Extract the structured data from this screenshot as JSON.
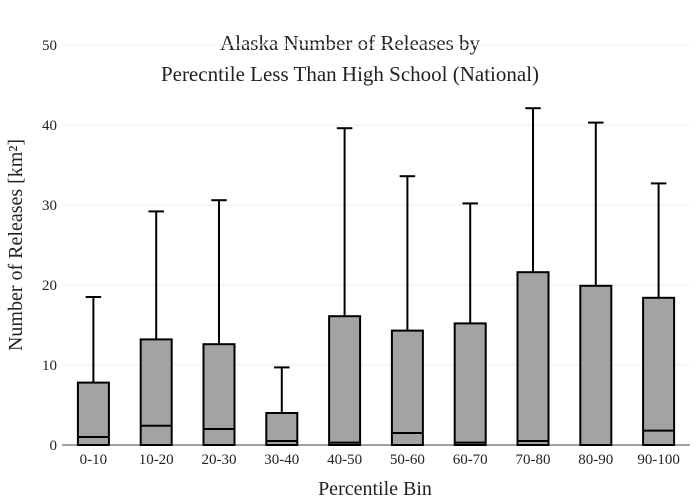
{
  "chart_data": {
    "type": "box",
    "title_lines": [
      "Alaska Number of Releases by",
      "Perecntile Less Than High School (National)"
    ],
    "xlabel": "Percentile Bin",
    "ylabel": "Number of Releases  [km²]",
    "ylim": [
      0,
      50
    ],
    "yticks": [
      0,
      10,
      20,
      30,
      40,
      50
    ],
    "grid": true,
    "categories": [
      "0-10",
      "10-20",
      "20-30",
      "30-40",
      "40-50",
      "50-60",
      "60-70",
      "70-80",
      "80-90",
      "90-100"
    ],
    "boxes": [
      {
        "category": "0-10",
        "q1": 0,
        "median": 1.0,
        "q3": 7.8,
        "whisker_high": 18.5
      },
      {
        "category": "10-20",
        "q1": 0,
        "median": 2.4,
        "q3": 13.2,
        "whisker_high": 29.2
      },
      {
        "category": "20-30",
        "q1": 0,
        "median": 2.0,
        "q3": 12.6,
        "whisker_high": 30.6
      },
      {
        "category": "30-40",
        "q1": 0,
        "median": 0.5,
        "q3": 4.0,
        "whisker_high": 9.7
      },
      {
        "category": "40-50",
        "q1": 0,
        "median": 0.3,
        "q3": 16.1,
        "whisker_high": 39.6
      },
      {
        "category": "50-60",
        "q1": 0,
        "median": 1.5,
        "q3": 14.3,
        "whisker_high": 33.6
      },
      {
        "category": "60-70",
        "q1": 0,
        "median": 0.3,
        "q3": 15.2,
        "whisker_high": 30.2
      },
      {
        "category": "70-80",
        "q1": 0,
        "median": 0.5,
        "q3": 21.6,
        "whisker_high": 42.1
      },
      {
        "category": "80-90",
        "q1": 0,
        "median": 0.0,
        "q3": 19.9,
        "whisker_high": 40.3
      },
      {
        "category": "90-100",
        "q1": 0,
        "median": 1.8,
        "q3": 18.4,
        "whisker_high": 32.7
      }
    ],
    "colors": {
      "box_fill": "#a3a3a3",
      "box_stroke": "#000000",
      "grid": "#ececec"
    }
  }
}
